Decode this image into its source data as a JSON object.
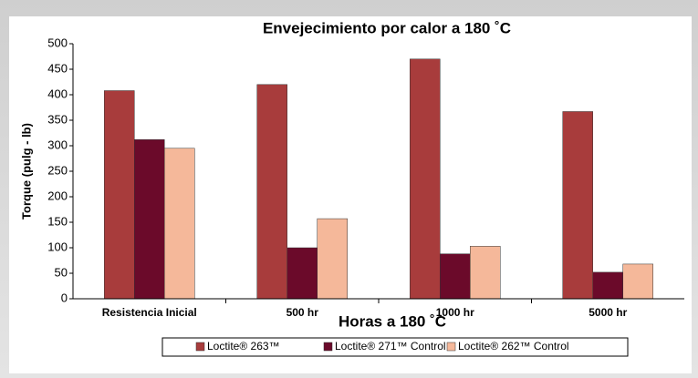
{
  "chart_data": {
    "type": "bar",
    "title": "Envejecimiento por calor a 180 ˚C",
    "x_label": "Horas a 180 ˚C",
    "y_label": "Torque (pulg - lb)",
    "categories": [
      "Resistencia Inicial",
      "500 hr",
      "1000 hr",
      "5000 hr"
    ],
    "series": [
      {
        "name": "Loctite® 263™",
        "color": "#a83c3c",
        "values": [
          408,
          420,
          470,
          367
        ]
      },
      {
        "name": "Loctite® 271™ Control",
        "color": "#6b0a2a",
        "values": [
          312,
          100,
          88,
          52
        ]
      },
      {
        "name": "Loctite® 262™ Control",
        "color": "#f5b89a",
        "values": [
          295,
          157,
          103,
          68
        ]
      }
    ],
    "ylim": [
      0,
      500
    ],
    "yticks": [
      0,
      50,
      100,
      150,
      200,
      250,
      300,
      350,
      400,
      450,
      500
    ],
    "grid": false,
    "legend": "bottom"
  }
}
